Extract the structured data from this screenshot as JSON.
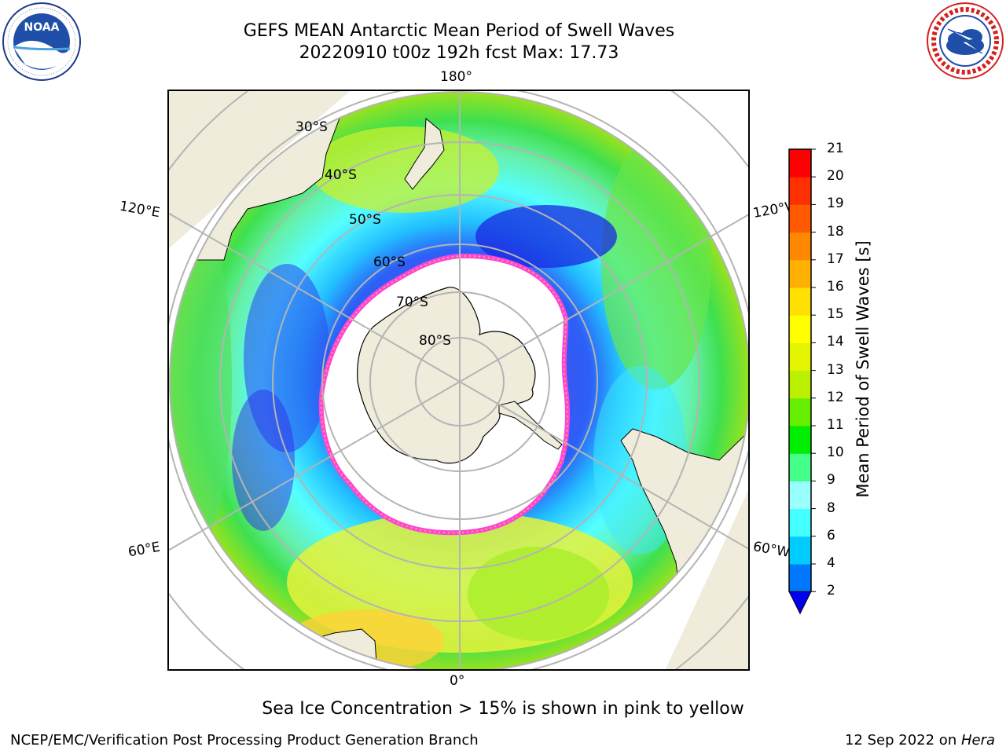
{
  "header": {
    "title_line1": "GEFS MEAN Antarctic Mean Period of Swell Waves",
    "title_line2": "20220910 t00z 192h fcst   Max: 17.73"
  },
  "logos": {
    "noaa": {
      "text": "NOAA",
      "icon": "noaa-logo-icon",
      "ring_text": "NATIONAL OCEANIC AND ATMOSPHERIC ADMINISTRATION · U.S. DEPARTMENT OF COMMERCE"
    },
    "nws": {
      "icon": "nws-logo-icon",
      "ring_text": "NATIONAL WEATHER SERVICE"
    }
  },
  "map": {
    "projection": "south-polar-stereographic",
    "longitude_labels": {
      "top": "180°",
      "bottom": "0°",
      "left_upper": "120°E",
      "left_lower": "60°E",
      "right_upper": "120°W",
      "right_lower": "60°W"
    },
    "latitude_labels": [
      "30°S",
      "40°S",
      "50°S",
      "60°S",
      "70°S",
      "80°S"
    ],
    "colors": {
      "land": "#efecdc",
      "ice_free_ocean": "#ffffff",
      "grid": "#b4b4b4",
      "sea_ice_edge": "#ff44dd"
    }
  },
  "colorbar": {
    "label": "Mean Period of Swell Waves [s]",
    "ticks": [
      "2",
      "4",
      "6",
      "8",
      "9",
      "10",
      "11",
      "12",
      "13",
      "14",
      "15",
      "16",
      "17",
      "18",
      "19",
      "20",
      "21"
    ],
    "colors": [
      "#0077ff",
      "#00ccff",
      "#44ffff",
      "#99ffff",
      "#44ff88",
      "#00ee00",
      "#66ee00",
      "#bbf000",
      "#e5f500",
      "#ffff00",
      "#ffe000",
      "#ffb000",
      "#ff8800",
      "#ff5a00",
      "#ff3000",
      "#ff0000"
    ],
    "under_color": "#0000ee"
  },
  "footer": {
    "note": "Sea Ice Concentration > 15% is shown in pink to yellow",
    "credit": "NCEP/EMC/Verification Post Processing Product Generation Branch",
    "date": "12 Sep 2022 on ",
    "host": "Hera"
  }
}
